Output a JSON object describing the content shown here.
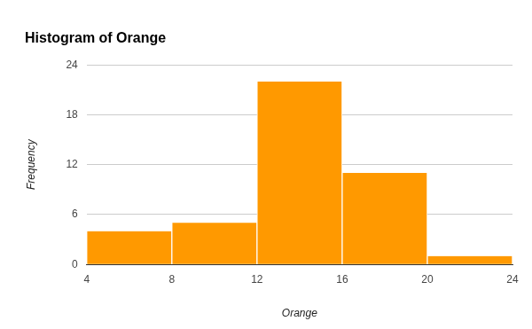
{
  "chart_data": {
    "type": "histogram",
    "title": "Histogram of Orange",
    "x_label": "Orange",
    "y_label": "Frequency",
    "bins": [
      4,
      8,
      12,
      16,
      20,
      24
    ],
    "values": [
      4,
      5,
      22,
      11,
      1
    ],
    "color": "#ff9900",
    "xlim": [
      4,
      24
    ],
    "xticks": [
      4,
      8,
      12,
      16,
      20,
      24
    ],
    "ylim": [
      0,
      24
    ],
    "yticks": [
      0,
      6,
      12,
      18,
      24
    ],
    "grid": true
  }
}
